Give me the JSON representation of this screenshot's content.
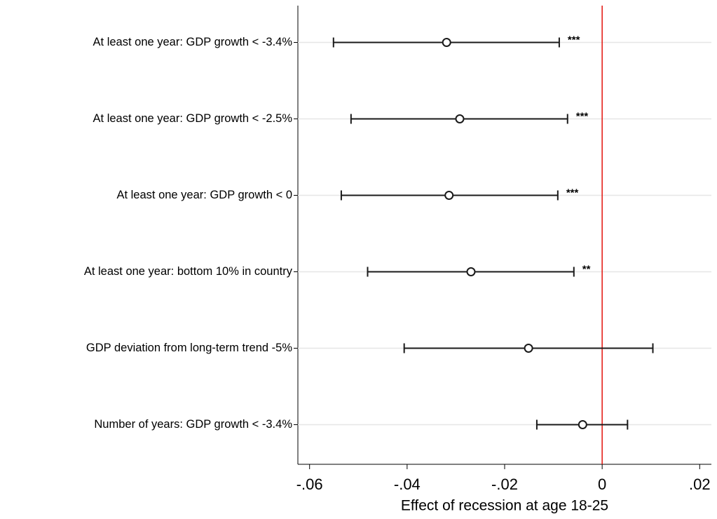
{
  "chart_data": {
    "type": "coefplot",
    "xlabel": "Effect of recession at age 18-25",
    "categories": [
      "At least one year: GDP growth < -3.4%",
      "At least one year: GDP growth < -2.5%",
      "At least one year: GDP growth < 0",
      "At least one year: bottom 10% in country",
      "GDP deviation from long-term trend -5%",
      "Number of years: GDP growth < -3.4%"
    ],
    "estimates": [
      -0.0319,
      -0.0292,
      -0.0314,
      -0.0269,
      -0.0151,
      -0.004
    ],
    "ci_low": [
      -0.0551,
      -0.0515,
      -0.0535,
      -0.0481,
      -0.0406,
      -0.0134
    ],
    "ci_high": [
      -0.0088,
      -0.0071,
      -0.0091,
      -0.0058,
      0.0104,
      0.0052
    ],
    "stars": [
      "***",
      "***",
      "***",
      "**",
      null,
      null
    ],
    "color": "#1a1a1a",
    "refline": {
      "value": 0,
      "color": "#e3120b"
    },
    "xlim": [
      -0.0624,
      0.0224
    ],
    "xticks": [
      {
        "value": -0.06,
        "label": "-.06"
      },
      {
        "value": -0.04,
        "label": "-.04"
      },
      {
        "value": -0.02,
        "label": "-.02"
      },
      0,
      {
        "value": 0.02,
        "label": ".02"
      }
    ],
    "grid": true
  }
}
